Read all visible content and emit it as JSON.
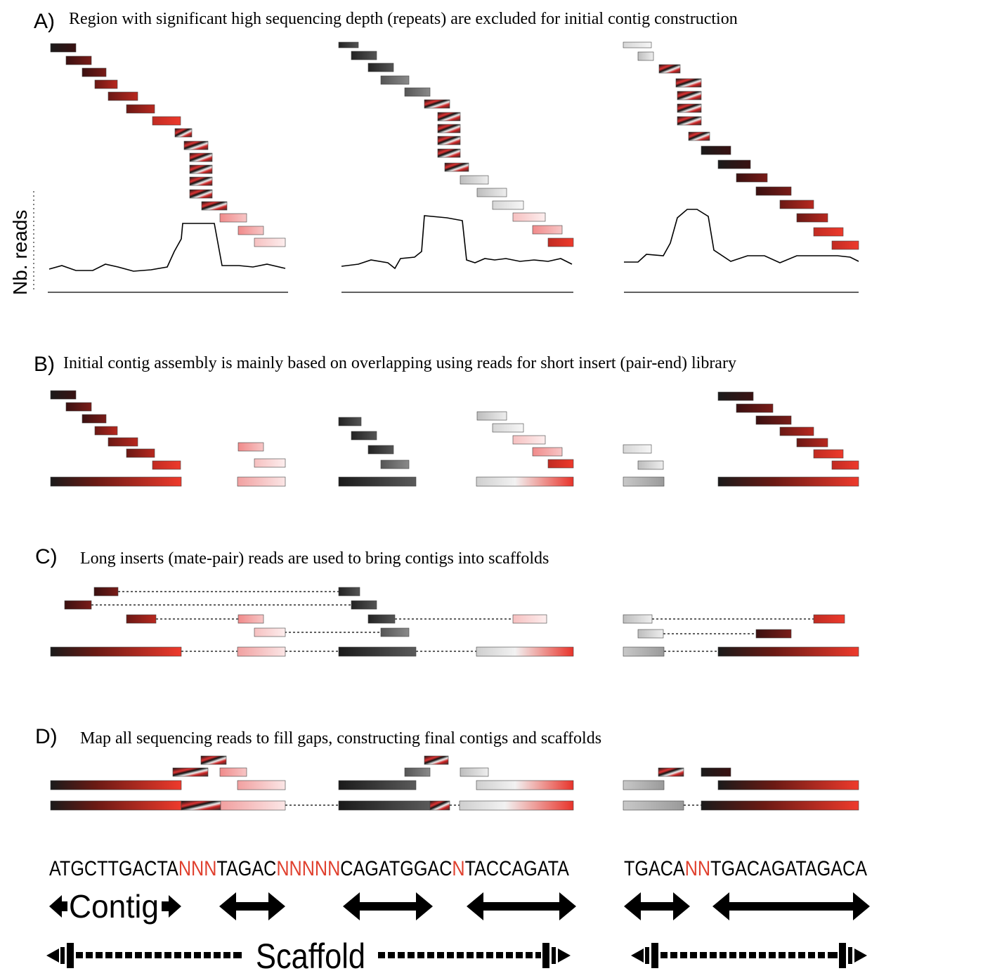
{
  "colors": {
    "dark": "#1a1a1a",
    "maroon": "#5a1414",
    "red": "#e8332a",
    "light_red": "#f3b0b0",
    "grey": "#b8b8b8",
    "light_grey": "#e4e4e4",
    "seq_red": "#e0402e",
    "line": "#000000"
  },
  "panels": {
    "a": {
      "letter": "A)",
      "caption": "Region with significant high sequencing depth  (repeats) are excluded for initial contig construction",
      "ylabel": "Nb. reads"
    },
    "b": {
      "letter": "B)",
      "caption": "Initial contig assembly is mainly based on overlapping using reads for short insert  (pair-end) library"
    },
    "c": {
      "letter": "C)",
      "caption": "Long inserts (mate-pair) reads are used to bring contigs into scaffolds"
    },
    "d": {
      "letter": "D)",
      "caption": "Map all sequencing reads to fill gaps, constructing final contigs and scaffolds",
      "sequence_left": [
        {
          "t": "ATGCTTGACTA",
          "gap": false
        },
        {
          "t": "NNN",
          "gap": true
        },
        {
          "t": "TAGAC",
          "gap": false
        },
        {
          "t": "NNNNN",
          "gap": true
        },
        {
          "t": "CAGATGGAC",
          "gap": false
        },
        {
          "t": "N",
          "gap": true
        },
        {
          "t": "TACCAGATA",
          "gap": false
        }
      ],
      "sequence_right": [
        {
          "t": "TGACA",
          "gap": false
        },
        {
          "t": "NN",
          "gap": true
        },
        {
          "t": "TGACAGATAGACA",
          "gap": false
        }
      ],
      "contig_label": "Contig",
      "scaffold_label": "Scaffold"
    }
  }
}
